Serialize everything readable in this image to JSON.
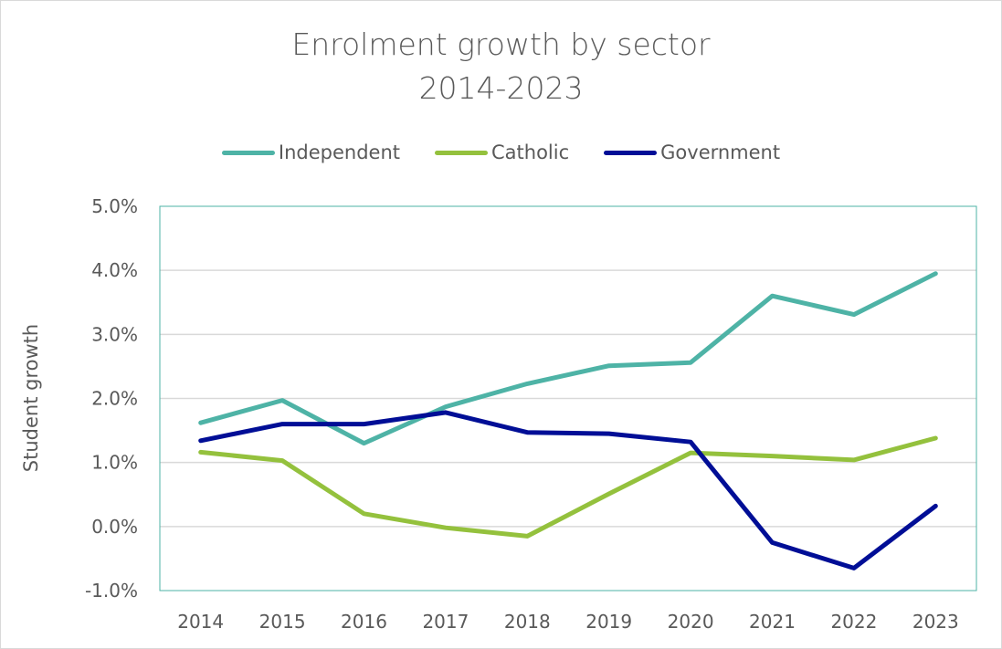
{
  "chart_data": {
    "type": "line",
    "title": [
      "Enrolment growth by sector",
      "2014-2023"
    ],
    "xlabel": "",
    "ylabel": "Student growth",
    "categories": [
      "2014",
      "2015",
      "2016",
      "2017",
      "2018",
      "2019",
      "2020",
      "2021",
      "2022",
      "2023"
    ],
    "series": [
      {
        "name": "Independent",
        "color": "#4eb3a6",
        "values": [
          1.62,
          1.97,
          1.3,
          1.87,
          2.23,
          2.51,
          2.56,
          3.6,
          3.31,
          3.95
        ]
      },
      {
        "name": "Catholic",
        "color": "#94c13d",
        "values": [
          1.16,
          1.03,
          0.2,
          -0.02,
          -0.15,
          0.51,
          1.15,
          1.1,
          1.04,
          1.38
        ]
      },
      {
        "name": "Government",
        "color": "#000e96",
        "values": [
          1.34,
          1.6,
          1.6,
          1.78,
          1.47,
          1.45,
          1.32,
          -0.25,
          -0.65,
          0.32
        ]
      }
    ],
    "y_ticks": [
      "-1.0%",
      "0.0%",
      "1.0%",
      "2.0%",
      "3.0%",
      "4.0%",
      "5.0%"
    ],
    "ylim": [
      -1,
      5
    ],
    "grid": true,
    "legend_position": "top"
  }
}
